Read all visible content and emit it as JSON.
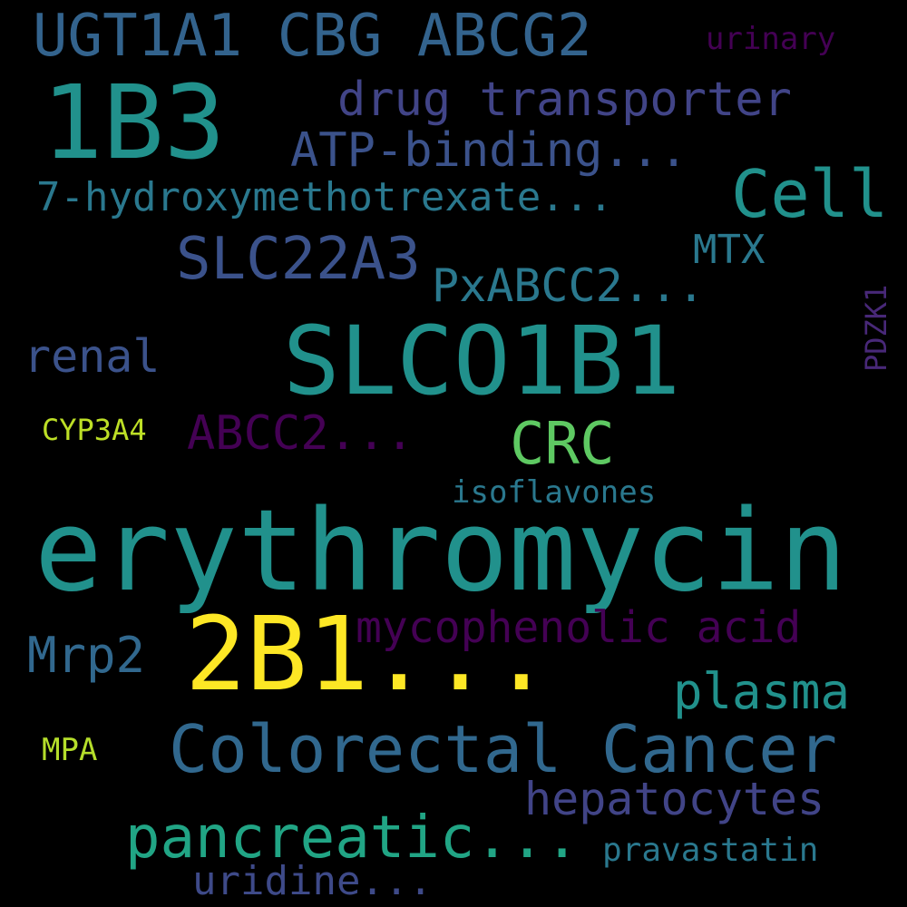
{
  "background_color": "#000000",
  "words": [
    {
      "id": "ugt1a1",
      "text": "UGT1A1 CBG ABCG2",
      "color": "#33638d"
    },
    {
      "id": "urinary",
      "text": "urinary",
      "color": "#440154"
    },
    {
      "id": "1b3",
      "text": "1B3",
      "color": "#21918c"
    },
    {
      "id": "drug-transporter",
      "text": "drug transporter",
      "color": "#414487"
    },
    {
      "id": "atp-binding",
      "text": "ATP-binding...",
      "color": "#3b528b"
    },
    {
      "id": "cell",
      "text": "Cell",
      "color": "#21918c"
    },
    {
      "id": "hydroxymethotrexate",
      "text": "7-hydroxymethotrexate...",
      "color": "#2a788e"
    },
    {
      "id": "slc22a3",
      "text": "SLC22A3",
      "color": "#3b528b"
    },
    {
      "id": "mtx",
      "text": "MTX",
      "color": "#2a788e"
    },
    {
      "id": "pxabcc2",
      "text": "PxABCC2...",
      "color": "#2a788e"
    },
    {
      "id": "pdzk1",
      "text": "PDZK1",
      "color": "#482878"
    },
    {
      "id": "renal",
      "text": "renal",
      "color": "#3b528b"
    },
    {
      "id": "slco1b1",
      "text": "SLCO1B1",
      "color": "#21918c"
    },
    {
      "id": "cyp3a4",
      "text": "CYP3A4",
      "color": "#bddf26"
    },
    {
      "id": "abcc2",
      "text": "ABCC2...",
      "color": "#440154"
    },
    {
      "id": "crc",
      "text": "CRC",
      "color": "#5ec962"
    },
    {
      "id": "isoflavones",
      "text": "isoflavones",
      "color": "#2a788e"
    },
    {
      "id": "erythromycin",
      "text": "erythromycin",
      "color": "#21918c"
    },
    {
      "id": "mrp2",
      "text": "Mrp2",
      "color": "#31688e"
    },
    {
      "id": "2b1",
      "text": "2B1...",
      "color": "#fde725"
    },
    {
      "id": "mycophenolic-acid",
      "text": "mycophenolic acid",
      "color": "#440154"
    },
    {
      "id": "plasma",
      "text": "plasma",
      "color": "#21918c"
    },
    {
      "id": "colorectal-cancer",
      "text": "Colorectal Cancer",
      "color": "#31688e"
    },
    {
      "id": "mpa",
      "text": "MPA",
      "color": "#b5de2b"
    },
    {
      "id": "hepatocytes",
      "text": "hepatocytes",
      "color": "#414487"
    },
    {
      "id": "pancreatic",
      "text": "pancreatic...",
      "color": "#21a585"
    },
    {
      "id": "pravastatin",
      "text": "pravastatin",
      "color": "#2a788e"
    },
    {
      "id": "uridine",
      "text": "uridine...",
      "color": "#3e4a89"
    }
  ]
}
